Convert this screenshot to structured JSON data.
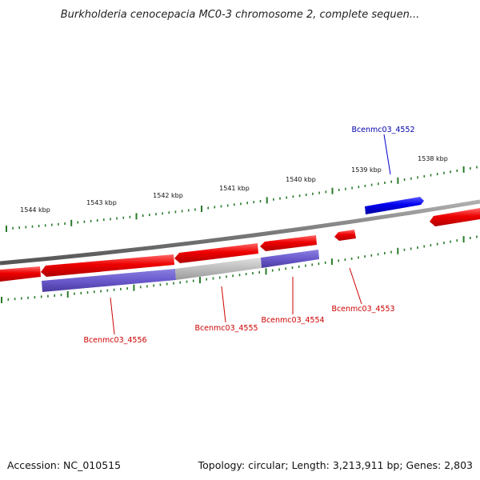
{
  "title": "Burkholderia cenocepacia MC0-3 chromosome 2, complete sequen...",
  "footer": {
    "accession": "Accession: NC_010515",
    "summary": "Topology: circular; Length: 3,213,911 bp; Genes: 2,803"
  },
  "scale_labels": [
    "1544 kbp",
    "1543 kbp",
    "1542 kbp",
    "1541 kbp",
    "1540 kbp",
    "1539 kbp",
    "1538 kbp"
  ],
  "genes": [
    {
      "name": "Bcenmc03_4552",
      "strand": "forward",
      "color": "#0000ee",
      "label_color": "#0000aa"
    },
    {
      "name": "Bcenmc03_4553",
      "strand": "reverse",
      "color": "#ee0000",
      "label_color": "#cc0000"
    },
    {
      "name": "Bcenmc03_4554",
      "strand": "reverse",
      "color": "#ee0000",
      "label_color": "#cc0000",
      "cog_color": "#6a5acd"
    },
    {
      "name": "Bcenmc03_4555",
      "strand": "reverse",
      "color": "#ee0000",
      "label_color": "#cc0000",
      "cog_color": "#b8b8b8"
    },
    {
      "name": "Bcenmc03_4556",
      "strand": "reverse",
      "color": "#ee0000",
      "label_color": "#cc0000",
      "cog_color": "#6a5acd"
    }
  ],
  "colors": {
    "backbone": "#808080",
    "ticks": "#2a7a2a",
    "forward_gene": "#0000ee",
    "reverse_gene": "#ee0000"
  }
}
